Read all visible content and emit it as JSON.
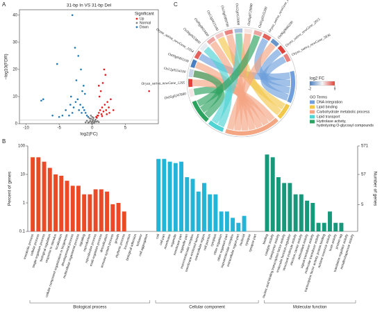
{
  "chart_data": [
    {
      "type": "scatter",
      "label": "A",
      "title": "31-bp In VS 31-bp Del",
      "x_label": "log2(FC)",
      "y_label": "−log10(FDR)",
      "legend_title": "Significant",
      "legend": "upper right",
      "xlim": [
        -11,
        10
      ],
      "xticks": [
        -10,
        -5,
        0,
        5
      ],
      "ylim": [
        0,
        42
      ],
      "yticks": [
        0,
        10,
        20,
        30,
        40
      ],
      "hline": 1.3,
      "series": [
        {
          "name": "Up",
          "color": "#e41a1c",
          "x": [
            0.6,
            0.8,
            1,
            1.2,
            1.4,
            1.5,
            1.7,
            1.9,
            2.1,
            2.3,
            2.5,
            1.1,
            1.3,
            0.9,
            1.6,
            2,
            2.8,
            3.2,
            1.8,
            1,
            2.2,
            8.6,
            0.7,
            1.5,
            2.6
          ],
          "values": [
            2.5,
            3,
            4,
            5,
            3.5,
            6,
            4.5,
            7,
            5,
            8,
            6,
            10,
            12,
            3,
            15,
            18,
            9,
            5,
            20,
            14,
            3.5,
            12,
            2.2,
            2.8,
            4
          ]
        },
        {
          "name": "Normal",
          "color": "#7f7f7f",
          "x": [
            -0.5,
            -0.3,
            -0.1,
            0,
            0.1,
            0.3,
            0.5,
            -0.4,
            0.2,
            -0.2,
            0.4,
            -0.6,
            0.6,
            0,
            -0.1,
            0.1,
            -0.3,
            0.3,
            -0.8,
            0.8,
            -1,
            1,
            -0.2,
            0.2,
            0
          ],
          "values": [
            0.5,
            1,
            0.3,
            0.8,
            1.2,
            0.6,
            1.5,
            2,
            0.2,
            1.8,
            1,
            0.4,
            0.7,
            2.5,
            0.1,
            1.6,
            0.9,
            0.3,
            1.1,
            0.9,
            0.5,
            0.6,
            3,
            2.2,
            0
          ]
        },
        {
          "name": "Down",
          "color": "#1f78b4",
          "x": [
            -0.6,
            -0.8,
            -1,
            -1.2,
            -1.4,
            -1.6,
            -1.8,
            -2,
            -2.2,
            -2.5,
            -2.8,
            -3,
            -3.2,
            -3.5,
            -4,
            -4.5,
            -5,
            -1.1,
            -1.3,
            -1.5,
            -1.7,
            -2.4,
            -2.1,
            -3,
            -2.6,
            -7.4,
            -7.7,
            -5.3,
            -3.3,
            -6
          ],
          "values": [
            2.5,
            3,
            4,
            5,
            6,
            4,
            7,
            5,
            9,
            8,
            6,
            4,
            10,
            3,
            5,
            3,
            2.5,
            11,
            14,
            12,
            20,
            16,
            25,
            40,
            28,
            9,
            8.5,
            22,
            7,
            3
          ]
        }
      ]
    },
    {
      "type": "chord",
      "label": "C",
      "fc_title": "log2 FC",
      "fc_lim": [
        -2,
        9
      ],
      "fc_ticks": [
        -2,
        9
      ],
      "fc_colors": [
        "#4a7fc1",
        "#f7f7f7",
        "#e0413a"
      ],
      "legend_title": "GO Terms",
      "terms": [
        {
          "name": "DNA integration",
          "color": "#6f9fdc"
        },
        {
          "name": "Lipid binding",
          "color": "#f2c84b"
        },
        {
          "name": "Carbohydrate metabolic process",
          "color": "#f4a582"
        },
        {
          "name": "Lipid transport",
          "color": "#4fd3d3"
        },
        {
          "name": "Hydrolase activity, hydrolyzing O-glycosyl compounds",
          "color": "#2ca25f"
        }
      ],
      "genes": [
        {
          "name": "Os05g0247800",
          "fc": 4,
          "terms": [
            "Hydrolase activity, hydrolyzing O-glycosyl compounds"
          ]
        },
        {
          "name": "Oryza_sativa_newGene_1295",
          "fc": 9,
          "terms": [
            "Carbohydrate metabolic process"
          ]
        },
        {
          "name": "Os12g0554100",
          "fc": 2,
          "terms": [
            "Carbohydrate metabolic process",
            "Hydrolase activity, hydrolyzing O-glycosyl compounds"
          ]
        },
        {
          "name": "Os09g0491100",
          "fc": -2,
          "terms": [
            "Carbohydrate metabolic process"
          ]
        },
        {
          "name": "Oryza_sativa_newGene_1054",
          "fc": 8,
          "terms": [
            "DNA integration"
          ]
        },
        {
          "name": "Os06g0653800",
          "fc": 3,
          "terms": [
            "Lipid transport"
          ]
        },
        {
          "name": "Os09g0663400",
          "fc": 6,
          "terms": [
            "Carbohydrate metabolic process"
          ]
        },
        {
          "name": "Os12g0415100",
          "fc": 5,
          "terms": [
            "Lipid binding"
          ]
        },
        {
          "name": "Os10g0389700",
          "fc": 7,
          "terms": [
            "Carbohydrate metabolic process"
          ]
        },
        {
          "name": "Os12g0123000",
          "fc": 1,
          "terms": [
            "Lipid binding",
            "Lipid transport"
          ]
        },
        {
          "name": "Os03g0729000",
          "fc": 4,
          "terms": [
            "Carbohydrate metabolic process"
          ]
        },
        {
          "name": "Os01g0335200",
          "fc": 6,
          "terms": [
            "Hydrolase activity, hydrolyzing O-glycosyl compounds"
          ]
        },
        {
          "name": "Oryza_sativa_newGene_6200",
          "fc": 8,
          "terms": [
            "DNA integration"
          ]
        },
        {
          "name": "Os06g0666200",
          "fc": -1,
          "terms": [
            "Carbohydrate metabolic process"
          ]
        },
        {
          "name": "Oryza_sativa_newGene_2815",
          "fc": 9,
          "terms": [
            "DNA integration"
          ]
        },
        {
          "name": "Oryza_sativa_newGene_5836",
          "fc": 7,
          "terms": [
            "DNA integration"
          ]
        }
      ]
    },
    {
      "type": "bar",
      "label": "B",
      "log": true,
      "y_label": "Percent of genes",
      "y2_label": "Number of genes",
      "ylim": [
        0.1,
        100
      ],
      "yticks": [
        0.1,
        1,
        10,
        100
      ],
      "y2lim": [
        0.571,
        571
      ],
      "y2ticks": [
        5,
        57,
        571
      ],
      "groups": [
        {
          "name": "Biological process",
          "color": "#ec4a26",
          "categories": [
            "metabolic process",
            "cellular process",
            "single-organism process",
            "biological regulation",
            "response to stimulus",
            "localization",
            "cellular component organization or biogenesis",
            "developmental process",
            "multicellular organismal process",
            "signaling",
            "reproduction",
            "reproductive process",
            "multi-organism process",
            "detoxification",
            "immune system process",
            "growth",
            "rhythmic process",
            "locomotion",
            "biological adhesion",
            "behavior",
            "cell aggregation"
          ],
          "values": [
            40,
            40,
            28,
            17,
            10,
            9,
            6,
            4,
            4,
            2,
            2,
            3,
            3,
            2.5,
            0.9,
            1,
            0.5,
            null,
            null,
            null,
            null
          ]
        },
        {
          "name": "Cellular component",
          "color": "#22b5d8",
          "categories": [
            "cell",
            "cell part",
            "membrane",
            "organelle",
            "membrane part",
            "organelle part",
            "macromolecular complex",
            "membrane-enclosed lumen",
            "extracellular region",
            "cell junction",
            "symplast",
            "other organism",
            "other organism part",
            "supramolecular complex",
            "extracellular region part",
            "nucleoid",
            "synapse",
            "synapse part"
          ],
          "values": [
            35,
            35,
            28,
            25,
            28,
            8,
            7,
            2.5,
            5,
            2,
            2,
            0.5,
            0.5,
            0.3,
            0.2,
            0.35,
            null,
            null
          ]
        },
        {
          "name": "Molecular function",
          "color": "#16997a",
          "categories": [
            "binding",
            "catalytic activity",
            "transporter activity",
            "nucleic acid binding transcription factor activity",
            "molecular function regulator",
            "structural molecule activity",
            "electron carrier activity",
            "antioxidant activity",
            "signal transducer activity",
            "molecular transducer activity",
            "transcription factor activity, protein binding",
            "nutrient reservoir activity",
            "toxin activity",
            "protein tag",
            "translation regulator activity",
            "metallochaperone activity"
          ],
          "values": [
            50,
            40,
            8,
            5,
            5,
            2,
            2,
            1.2,
            1,
            0.2,
            0.2,
            0.5,
            0.2,
            0.2,
            null,
            null
          ]
        }
      ]
    }
  ]
}
